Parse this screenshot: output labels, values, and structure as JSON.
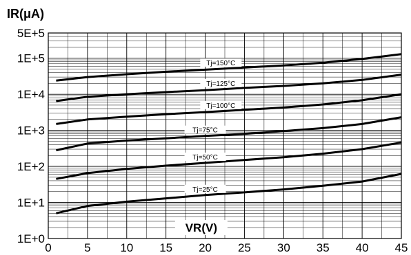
{
  "chart_data": {
    "type": "line",
    "ylabel": "IR(μA)",
    "xlabel": "VR(V)",
    "y_scale": "log",
    "ylim": [
      1,
      500000
    ],
    "xlim": [
      0,
      45
    ],
    "grid": true,
    "x_ticks": [
      "0",
      "5",
      "10",
      "15",
      "20",
      "25",
      "30",
      "35",
      "40",
      "45"
    ],
    "y_ticks": [
      "1E+0",
      "1E+1",
      "1E+2",
      "1E+3",
      "1E+4",
      "1E+5",
      "5E+5"
    ],
    "series": [
      {
        "name": "Tj=150°C",
        "x": [
          1,
          5,
          10,
          15,
          20,
          25,
          30,
          35,
          40,
          45
        ],
        "y": [
          24000,
          30000,
          36000,
          42000,
          48000,
          55000,
          63000,
          75000,
          95000,
          130000
        ]
      },
      {
        "name": "Tj=125°C",
        "x": [
          1,
          5,
          10,
          15,
          20,
          25,
          30,
          35,
          40,
          45
        ],
        "y": [
          6500,
          8500,
          10000,
          11500,
          13000,
          15000,
          17000,
          20000,
          25000,
          35000
        ]
      },
      {
        "name": "Tj=100°C",
        "x": [
          1,
          5,
          10,
          15,
          20,
          25,
          30,
          35,
          40,
          45
        ],
        "y": [
          1500,
          2000,
          2400,
          2800,
          3200,
          3700,
          4300,
          5200,
          6800,
          10000
        ]
      },
      {
        "name": "Tj=75°C",
        "x": [
          1,
          5,
          10,
          15,
          20,
          25,
          30,
          35,
          40,
          45
        ],
        "y": [
          280,
          430,
          520,
          600,
          700,
          800,
          950,
          1150,
          1500,
          2300
        ]
      },
      {
        "name": "Tj=50°C",
        "x": [
          1,
          5,
          10,
          15,
          20,
          25,
          30,
          35,
          40,
          45
        ],
        "y": [
          45,
          65,
          85,
          105,
          125,
          150,
          180,
          225,
          300,
          460
        ]
      },
      {
        "name": "Tj=25°C",
        "x": [
          1,
          5,
          10,
          15,
          20,
          25,
          30,
          35,
          40,
          45
        ],
        "y": [
          5,
          8,
          10.5,
          13,
          16,
          19,
          23,
          29,
          38,
          62
        ]
      }
    ]
  }
}
